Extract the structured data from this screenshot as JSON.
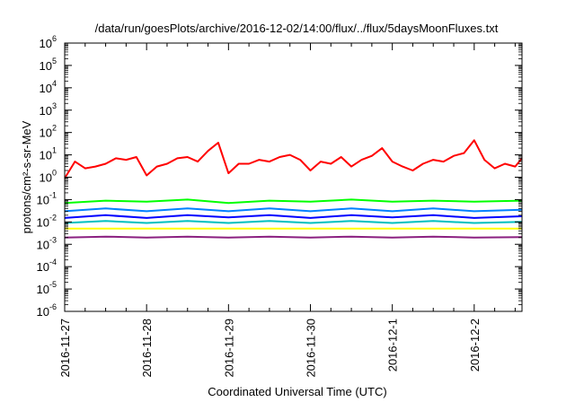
{
  "chart_data": {
    "type": "line",
    "title": "/data/run/goesPlots/archive/2016-12-02/14:00/flux/../flux/5daysMoonFluxes.txt",
    "xlabel": "Coordinated Universal Time (UTC)",
    "ylabel": "protons/cm²-s-sr-MeV",
    "y_scale": "log",
    "ylim": [
      1e-06,
      1000000.0
    ],
    "y_ticks": [
      {
        "base": "10",
        "exp": "6"
      },
      {
        "base": "10",
        "exp": "5"
      },
      {
        "base": "10",
        "exp": "4"
      },
      {
        "base": "10",
        "exp": "3"
      },
      {
        "base": "10",
        "exp": "2"
      },
      {
        "base": "10",
        "exp": "1"
      },
      {
        "base": "10",
        "exp": "0"
      },
      {
        "base": "10",
        "exp": "-1"
      },
      {
        "base": "10",
        "exp": "-2"
      },
      {
        "base": "10",
        "exp": "-3"
      },
      {
        "base": "10",
        "exp": "-4"
      },
      {
        "base": "10",
        "exp": "-5"
      },
      {
        "base": "10",
        "exp": "-6"
      }
    ],
    "x_range": [
      "2016-11-27",
      "2016-12-02 14:00"
    ],
    "x_tick_labels": [
      "2016-11-27",
      "2016-11-28",
      "2016-11-29",
      "2016-11-30",
      "2016-12-1",
      "2016-12-2"
    ],
    "grid": false,
    "legend": "none",
    "series": [
      {
        "color": "#ff0000",
        "x": [
          "2016-11-27 00:00",
          "2016-11-27 03:00",
          "2016-11-27 06:00",
          "2016-11-27 09:00",
          "2016-11-27 12:00",
          "2016-11-27 15:00",
          "2016-11-27 18:00",
          "2016-11-27 21:00",
          "2016-11-28 00:00",
          "2016-11-28 03:00",
          "2016-11-28 06:00",
          "2016-11-28 09:00",
          "2016-11-28 12:00",
          "2016-11-28 15:00",
          "2016-11-28 18:00",
          "2016-11-28 21:00",
          "2016-11-29 00:00",
          "2016-11-29 03:00",
          "2016-11-29 06:00",
          "2016-11-29 09:00",
          "2016-11-29 12:00",
          "2016-11-29 15:00",
          "2016-11-29 18:00",
          "2016-11-29 21:00",
          "2016-11-30 00:00",
          "2016-11-30 03:00",
          "2016-11-30 06:00",
          "2016-11-30 09:00",
          "2016-11-30 12:00",
          "2016-11-30 15:00",
          "2016-11-30 18:00",
          "2016-11-30 21:00",
          "2016-12-01 00:00",
          "2016-12-01 03:00",
          "2016-12-01 06:00",
          "2016-12-01 09:00",
          "2016-12-01 12:00",
          "2016-12-01 15:00",
          "2016-12-01 18:00",
          "2016-12-01 21:00",
          "2016-12-02 00:00",
          "2016-12-02 03:00",
          "2016-12-02 06:00",
          "2016-12-02 09:00",
          "2016-12-02 12:00",
          "2016-12-02 14:00"
        ],
        "values": [
          0.9,
          5,
          2.5,
          3,
          4,
          7,
          6,
          8,
          1.2,
          3,
          4,
          7,
          8,
          5,
          15,
          35,
          1.5,
          4,
          4,
          6,
          5,
          8,
          10,
          6,
          2,
          5,
          4,
          8,
          3,
          6,
          9,
          20,
          5,
          3,
          2,
          4,
          6,
          5,
          9,
          12,
          45,
          6,
          2.5,
          4,
          3,
          7
        ]
      },
      {
        "color": "#00ff00",
        "x": [
          "2016-11-27 00:00",
          "2016-11-27 12:00",
          "2016-11-28 00:00",
          "2016-11-28 12:00",
          "2016-11-29 00:00",
          "2016-11-29 12:00",
          "2016-11-30 00:00",
          "2016-11-30 12:00",
          "2016-12-01 00:00",
          "2016-12-01 12:00",
          "2016-12-02 00:00",
          "2016-12-02 14:00"
        ],
        "values": [
          0.07,
          0.09,
          0.08,
          0.1,
          0.07,
          0.09,
          0.08,
          0.1,
          0.08,
          0.09,
          0.08,
          0.09
        ]
      },
      {
        "color": "#0080ff",
        "x": [
          "2016-11-27 00:00",
          "2016-11-27 12:00",
          "2016-11-28 00:00",
          "2016-11-28 12:00",
          "2016-11-29 00:00",
          "2016-11-29 12:00",
          "2016-11-30 00:00",
          "2016-11-30 12:00",
          "2016-12-01 00:00",
          "2016-12-01 12:00",
          "2016-12-02 00:00",
          "2016-12-02 14:00"
        ],
        "values": [
          0.03,
          0.04,
          0.03,
          0.04,
          0.03,
          0.04,
          0.03,
          0.04,
          0.03,
          0.04,
          0.03,
          0.035
        ]
      },
      {
        "color": "#0000ff",
        "x": [
          "2016-11-27 00:00",
          "2016-11-27 12:00",
          "2016-11-28 00:00",
          "2016-11-28 12:00",
          "2016-11-29 00:00",
          "2016-11-29 12:00",
          "2016-11-30 00:00",
          "2016-11-30 12:00",
          "2016-12-01 00:00",
          "2016-12-01 12:00",
          "2016-12-02 00:00",
          "2016-12-02 14:00"
        ],
        "values": [
          0.015,
          0.02,
          0.015,
          0.02,
          0.016,
          0.02,
          0.015,
          0.02,
          0.016,
          0.02,
          0.015,
          0.018
        ]
      },
      {
        "color": "#00c0c0",
        "x": [
          "2016-11-27 00:00",
          "2016-11-27 12:00",
          "2016-11-28 00:00",
          "2016-11-28 12:00",
          "2016-11-29 00:00",
          "2016-11-29 12:00",
          "2016-11-30 00:00",
          "2016-11-30 12:00",
          "2016-12-01 00:00",
          "2016-12-01 12:00",
          "2016-12-02 00:00",
          "2016-12-02 14:00"
        ],
        "values": [
          0.009,
          0.011,
          0.009,
          0.011,
          0.009,
          0.011,
          0.009,
          0.011,
          0.009,
          0.011,
          0.009,
          0.01
        ]
      },
      {
        "color": "#ffff00",
        "x": [
          "2016-11-27 00:00",
          "2016-11-27 12:00",
          "2016-11-28 00:00",
          "2016-11-28 12:00",
          "2016-11-29 00:00",
          "2016-11-29 12:00",
          "2016-11-30 00:00",
          "2016-11-30 12:00",
          "2016-12-01 00:00",
          "2016-12-01 12:00",
          "2016-12-02 00:00",
          "2016-12-02 14:00"
        ],
        "values": [
          0.005,
          0.005,
          0.005,
          0.005,
          0.005,
          0.005,
          0.005,
          0.005,
          0.005,
          0.005,
          0.005,
          0.005
        ]
      },
      {
        "color": "#8b2080",
        "x": [
          "2016-11-27 00:00",
          "2016-11-27 12:00",
          "2016-11-28 00:00",
          "2016-11-28 12:00",
          "2016-11-29 00:00",
          "2016-11-29 12:00",
          "2016-11-30 00:00",
          "2016-11-30 12:00",
          "2016-12-01 00:00",
          "2016-12-01 12:00",
          "2016-12-02 00:00",
          "2016-12-02 14:00"
        ],
        "values": [
          0.002,
          0.0022,
          0.002,
          0.0022,
          0.002,
          0.0022,
          0.002,
          0.0022,
          0.002,
          0.0022,
          0.002,
          0.0021
        ]
      }
    ]
  }
}
